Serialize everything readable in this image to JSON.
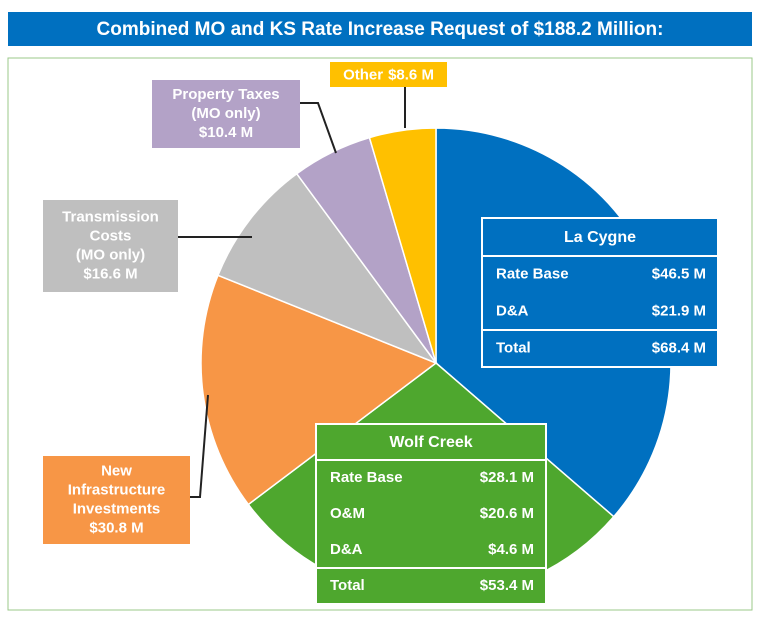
{
  "chart_data": {
    "type": "pie",
    "title": "Combined  MO and KS Rate Increase Request of $188.2 Million:",
    "categories": [
      [
        "La Cygne"
      ],
      [
        "Wolf Creek"
      ],
      [
        "New",
        "Infrastructure",
        "Investments"
      ],
      [
        "Transmission",
        "Costs",
        "(MO only)"
      ],
      [
        "Property Taxes",
        "(MO only)"
      ],
      [
        "Other"
      ]
    ],
    "values": [
      68.4,
      53.4,
      30.8,
      16.6,
      10.4,
      8.6
    ],
    "value_labels": [
      "$68.4 M",
      "$53.4 M",
      "$30.8 M",
      "$16.6 M",
      "$10.4 M",
      "$8.6 M"
    ],
    "colors": [
      "#0070c0",
      "#4ea72e",
      "#f79646",
      "#bfbfbf",
      "#b3a2c7",
      "#ffc000"
    ],
    "breakdowns": [
      {
        "rows": [
          {
            "label": "Rate Base",
            "value": "$46.5 M"
          },
          {
            "label": "D&A",
            "value": "$21.9 M"
          }
        ],
        "total_label": "Total"
      },
      {
        "rows": [
          {
            "label": "Rate Base",
            "value": "$28.1 M"
          },
          {
            "label": "O&M",
            "value": "$20.6 M"
          },
          {
            "label": "D&A",
            "value": "$4.6 M"
          }
        ],
        "total_label": "Total"
      }
    ]
  }
}
